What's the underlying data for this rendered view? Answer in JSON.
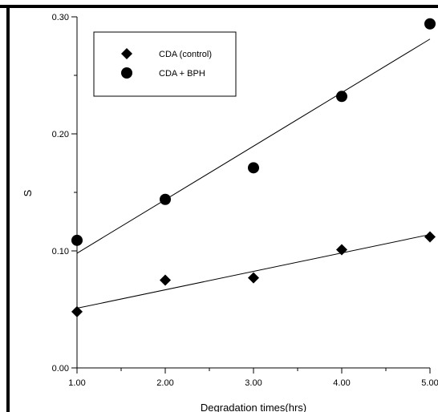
{
  "chart_data": {
    "type": "scatter",
    "xlabel": "Degradation times(hrs)",
    "ylabel": "S",
    "xlim": [
      1.0,
      5.0
    ],
    "ylim": [
      0.0,
      0.3
    ],
    "x_ticks": [
      "1.00",
      "2.00",
      "3.00",
      "4.00",
      "5.00"
    ],
    "y_ticks": [
      "0.00",
      "0.10",
      "0.20",
      "0.30"
    ],
    "x_tick_values": [
      1,
      2,
      3,
      4,
      5
    ],
    "y_tick_values": [
      0,
      0.1,
      0.2,
      0.3
    ],
    "grid": false,
    "legend_position": "top-left",
    "series": [
      {
        "name": "CDA (control)",
        "marker": "diamond",
        "x": [
          1,
          2,
          3,
          4,
          5
        ],
        "y": [
          0.048,
          0.075,
          0.077,
          0.101,
          0.112
        ],
        "fit": [
          [
            1,
            0.051
          ],
          [
            5,
            0.114
          ]
        ]
      },
      {
        "name": "CDA + BPH",
        "marker": "circle",
        "x": [
          1,
          2,
          3,
          4,
          5
        ],
        "y": [
          0.109,
          0.144,
          0.171,
          0.232,
          0.294
        ],
        "fit": [
          [
            1,
            0.098
          ],
          [
            5,
            0.281
          ]
        ]
      }
    ],
    "colors": {
      "marker": "#000000",
      "axis": "#000000"
    }
  }
}
